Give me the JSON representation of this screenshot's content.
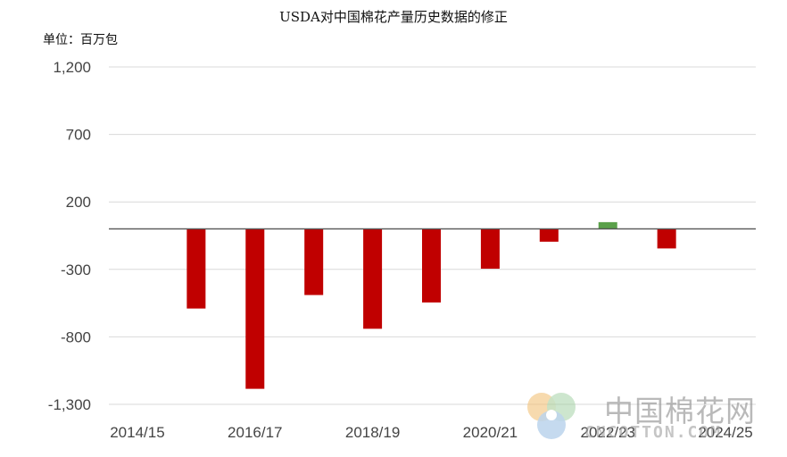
{
  "header": {
    "title": "USDA对中国棉花产量历史数据的修正",
    "unit": "单位：百万包"
  },
  "watermark": {
    "name": "中国棉花网",
    "domain": "CNCOTTON.COM"
  },
  "chart_data": {
    "type": "bar",
    "categories": [
      "2014/15",
      "2015/16",
      "2016/17",
      "2017/18",
      "2018/19",
      "2019/20",
      "2020/21",
      "2021/22",
      "2022/23",
      "2023/24",
      "2024/25"
    ],
    "category_labels_shown": [
      "2014/15",
      "2016/17",
      "2018/19",
      "2020/21",
      "2022/23",
      "2024/25"
    ],
    "values": [
      0,
      -590,
      -1185,
      -490,
      -740,
      -545,
      -295,
      -95,
      50,
      -145,
      0
    ],
    "yticks": [
      1200,
      700,
      200,
      -300,
      -800,
      -1300
    ],
    "ytick_labels": [
      "1,200",
      "700",
      "200",
      "-300",
      "-800",
      "-1,300"
    ],
    "ylim": [
      -1300,
      1200
    ],
    "grid": true,
    "colors": {
      "negative": "#c00000",
      "positive": "#5aa04a",
      "grid": "#d9d9d9",
      "zero_line": "#555555"
    }
  }
}
